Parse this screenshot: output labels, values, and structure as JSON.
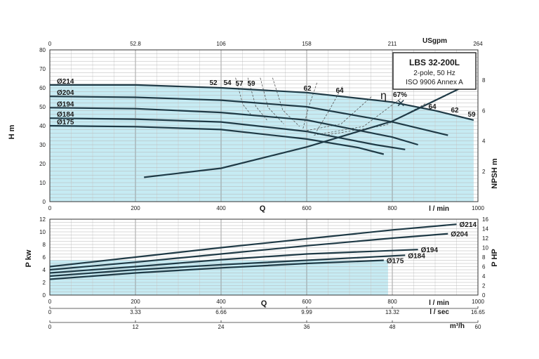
{
  "chart_data": [
    {
      "type": "line",
      "panel": "head",
      "box": {
        "title": "LBS 32-200L",
        "line2": "2-pole, 50 Hz",
        "line3": "ISO 9906 Annex A"
      },
      "xlabel": "Q",
      "xunit": "l / min",
      "xlim": [
        0,
        1000
      ],
      "x_ticks": [
        "0",
        "200",
        "400",
        "600",
        "800",
        "1000"
      ],
      "top_axis": {
        "unit": "USgpm",
        "ticks": [
          "0",
          "52.8",
          "106",
          "158",
          "211",
          "264"
        ]
      },
      "ylabel": "H m",
      "ylim": [
        0,
        80
      ],
      "y_ticks": [
        "0",
        "10",
        "20",
        "30",
        "40",
        "50",
        "60",
        "70",
        "80"
      ],
      "y2label": "NPSH m",
      "y2lim": [
        0,
        10
      ],
      "y2_ticks": [
        "2",
        "4",
        "6",
        "8"
      ],
      "grid": true,
      "series": [
        {
          "name": "Ø214",
          "x": [
            0,
            200,
            400,
            600,
            800,
            900,
            990
          ],
          "y": [
            61.5,
            61.5,
            60,
            57.5,
            52.5,
            48,
            43
          ]
        },
        {
          "name": "Ø204",
          "x": [
            0,
            200,
            400,
            600,
            800,
            930
          ],
          "y": [
            55.5,
            55,
            53.5,
            50,
            42,
            35
          ]
        },
        {
          "name": "Ø194",
          "x": [
            0,
            200,
            400,
            600,
            800,
            860
          ],
          "y": [
            49.5,
            49,
            47,
            43,
            34,
            30
          ]
        },
        {
          "name": "Ø184",
          "x": [
            0,
            200,
            400,
            600,
            760,
            830
          ],
          "y": [
            44,
            43.5,
            42,
            37,
            30,
            27.5
          ]
        },
        {
          "name": "Ø175",
          "x": [
            0,
            200,
            400,
            600,
            720,
            780
          ],
          "y": [
            40,
            39.5,
            38,
            33,
            28.5,
            25
          ]
        }
      ],
      "npsh": {
        "x": [
          220,
          400,
          600,
          800,
          990
        ],
        "y": [
          1.6,
          2.2,
          3.6,
          5.3,
          7.9
        ]
      },
      "efficiency_labels": [
        "52",
        "54",
        "57",
        "59",
        "62",
        "64",
        "67%",
        "64",
        "62",
        "59"
      ],
      "eta_symbol": "η",
      "bep": {
        "x": 820,
        "y": 52
      }
    },
    {
      "type": "line",
      "panel": "power",
      "xlabel": "Q",
      "xunit_1": "l / min",
      "xlim": [
        0,
        1000
      ],
      "x_ticks": [
        "0",
        "200",
        "400",
        "600",
        "800",
        "1000"
      ],
      "x2unit": "l / sec",
      "x2_ticks": [
        "0",
        "3.33",
        "6.66",
        "9.99",
        "13.32",
        "16.65"
      ],
      "x3unit": "m³/h",
      "x3_ticks": [
        "0",
        "12",
        "24",
        "36",
        "48",
        "60"
      ],
      "ylabel": "P kw",
      "ylim": [
        0,
        12
      ],
      "y_ticks": [
        "0",
        "2",
        "4",
        "6",
        "8",
        "10",
        "12"
      ],
      "y2label": "P HP",
      "y2lim": [
        0,
        16
      ],
      "y2_ticks": [
        "0",
        "2",
        "4",
        "6",
        "8",
        "10",
        "12",
        "14",
        "16"
      ],
      "grid": true,
      "series": [
        {
          "name": "Ø214",
          "x": [
            0,
            200,
            400,
            600,
            800,
            950
          ],
          "y": [
            4.5,
            6,
            7.5,
            8.9,
            10.3,
            11.2
          ]
        },
        {
          "name": "Ø204",
          "x": [
            0,
            200,
            400,
            600,
            800,
            930
          ],
          "y": [
            4,
            5.2,
            6.5,
            7.8,
            9,
            9.7
          ]
        },
        {
          "name": "Ø194",
          "x": [
            0,
            200,
            400,
            600,
            860
          ],
          "y": [
            3.5,
            4.5,
            5.6,
            6.5,
            7.2
          ]
        },
        {
          "name": "Ø184",
          "x": [
            0,
            200,
            400,
            600,
            830
          ],
          "y": [
            3,
            4,
            4.8,
            5.5,
            6.3
          ]
        },
        {
          "name": "Ø175",
          "x": [
            0,
            200,
            400,
            600,
            780
          ],
          "y": [
            2.5,
            3.5,
            4.3,
            5,
            5.5
          ]
        }
      ]
    }
  ]
}
